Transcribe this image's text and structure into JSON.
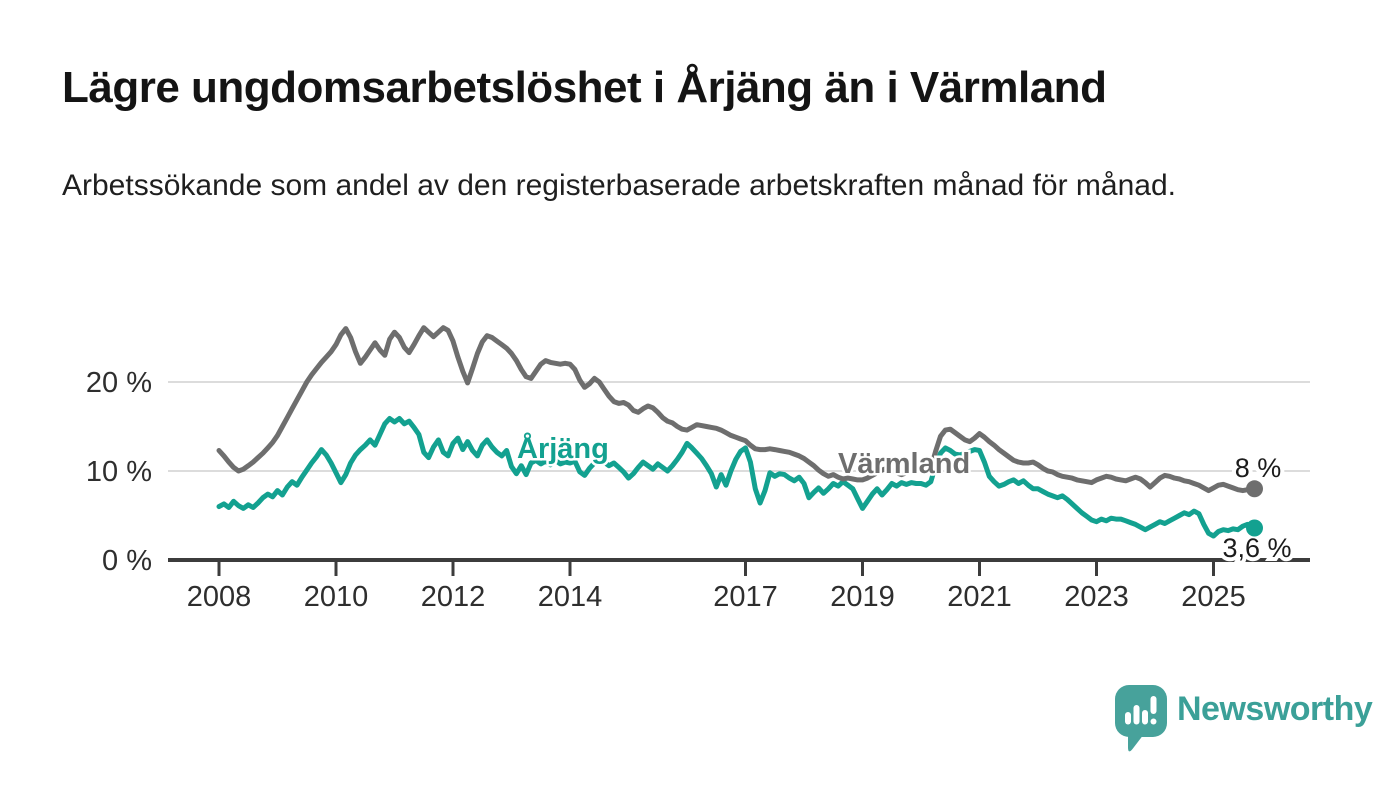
{
  "header": {
    "title": "Lägre ungdomsarbetslöshet i Årjäng än i Värmland",
    "subtitle": "Arbetssökande som andel av den registerbaserade arbetskraften månad för månad."
  },
  "colors": {
    "background": "#ffffff",
    "title_text": "#141414",
    "subtitle_text": "#1f1f1f",
    "axis_line": "#3c3c3c",
    "tick_label": "#2e2e2e",
    "gridline": "#dcdcdc",
    "varmland_line": "#6e6e6e",
    "arjang_line": "#13a190",
    "end_label_text": "#1c1c1c",
    "logo_teal": "#47a29b",
    "wordmark_teal": "#3ba098"
  },
  "chart_data": {
    "type": "line",
    "title": "Lägre ungdomsarbetslöshet i Årjäng än i Värmland",
    "subtitle": "Arbetssökande som andel av den registerbaserade arbetskraften månad för månad.",
    "unit": "%",
    "frequency": "monthly",
    "start": "2008-01",
    "end": "2025-09",
    "ylim": [
      0,
      27
    ],
    "grid": true,
    "legend_position": "inline-labels",
    "y_ticks": [
      {
        "value": 20,
        "label": "20 %",
        "grid": true
      },
      {
        "value": 10,
        "label": "10 %",
        "grid": true
      },
      {
        "value": 0,
        "label": "0 %",
        "grid": false
      }
    ],
    "x_ticks": [
      {
        "year": 2008,
        "label": "2008"
      },
      {
        "year": 2010,
        "label": "2010"
      },
      {
        "year": 2012,
        "label": "2012"
      },
      {
        "year": 2014,
        "label": "2014"
      },
      {
        "year": 2017,
        "label": "2017"
      },
      {
        "year": 2019,
        "label": "2019"
      },
      {
        "year": 2021,
        "label": "2021"
      },
      {
        "year": 2023,
        "label": "2023"
      },
      {
        "year": 2025,
        "label": "2025"
      }
    ],
    "series": [
      {
        "name": "Värmland",
        "color": "#6e6e6e",
        "end_label": "8 %",
        "last_value": 8.0,
        "values": [
          12.3,
          11.7,
          11.0,
          10.4,
          10.0,
          10.2,
          10.6,
          11.0,
          11.5,
          12.0,
          12.6,
          13.2,
          14.0,
          15.0,
          16.0,
          17.0,
          18.0,
          19.0,
          20.0,
          20.8,
          21.5,
          22.2,
          22.8,
          23.4,
          24.2,
          25.3,
          26.0,
          25.0,
          23.4,
          22.1,
          22.8,
          23.6,
          24.4,
          23.6,
          23.0,
          24.8,
          25.6,
          25.0,
          23.9,
          23.3,
          24.2,
          25.2,
          26.1,
          25.6,
          25.1,
          25.6,
          26.1,
          25.8,
          24.6,
          22.8,
          21.2,
          19.9,
          21.5,
          23.2,
          24.5,
          25.2,
          25.0,
          24.6,
          24.2,
          23.8,
          23.2,
          22.4,
          21.4,
          20.6,
          20.4,
          21.2,
          22.0,
          22.4,
          22.2,
          22.1,
          22.0,
          22.1,
          22.0,
          21.4,
          20.2,
          19.4,
          19.8,
          20.4,
          20.0,
          19.2,
          18.4,
          17.8,
          17.6,
          17.7,
          17.4,
          16.8,
          16.6,
          17.0,
          17.3,
          17.1,
          16.6,
          16.0,
          15.6,
          15.4,
          15.0,
          14.7,
          14.6,
          14.9,
          15.2,
          15.1,
          15.0,
          14.9,
          14.8,
          14.6,
          14.3,
          14.0,
          13.8,
          13.6,
          13.4,
          12.9,
          12.5,
          12.4,
          12.4,
          12.5,
          12.4,
          12.3,
          12.2,
          12.1,
          11.9,
          11.7,
          11.4,
          11.0,
          10.6,
          10.1,
          9.7,
          9.4,
          9.6,
          9.3,
          9.1,
          9.2,
          9.1,
          9.0,
          9.0,
          9.2,
          9.5,
          9.8,
          10.1,
          10.3,
          10.1,
          9.8,
          9.6,
          9.8,
          9.9,
          10.0,
          10.0,
          9.9,
          10.3,
          12.2,
          13.9,
          14.6,
          14.7,
          14.3,
          13.9,
          13.5,
          13.3,
          13.7,
          14.2,
          13.8,
          13.3,
          12.9,
          12.4,
          12.0,
          11.6,
          11.2,
          11.0,
          10.9,
          10.9,
          11.0,
          10.7,
          10.3,
          10.0,
          9.9,
          9.6,
          9.4,
          9.3,
          9.2,
          9.0,
          8.9,
          8.8,
          8.7,
          9.0,
          9.2,
          9.4,
          9.3,
          9.1,
          9.0,
          8.9,
          9.1,
          9.3,
          9.1,
          8.7,
          8.2,
          8.7,
          9.2,
          9.5,
          9.4,
          9.2,
          9.1,
          8.9,
          8.8,
          8.6,
          8.4,
          8.1,
          7.8,
          8.1,
          8.4,
          8.5,
          8.3,
          8.1,
          7.9,
          7.8,
          7.9,
          8.0
        ]
      },
      {
        "name": "Årjäng",
        "color": "#13a190",
        "end_label": "3,6 %",
        "last_value": 3.6,
        "values": [
          6.0,
          6.3,
          5.9,
          6.6,
          6.1,
          5.8,
          6.2,
          5.9,
          6.4,
          7.0,
          7.4,
          7.1,
          7.8,
          7.3,
          8.2,
          8.8,
          8.4,
          9.3,
          10.1,
          10.9,
          11.6,
          12.4,
          11.8,
          10.9,
          9.8,
          8.7,
          9.6,
          10.9,
          11.8,
          12.4,
          12.9,
          13.5,
          12.9,
          14.1,
          15.3,
          15.9,
          15.5,
          15.9,
          15.3,
          15.6,
          14.9,
          14.1,
          12.1,
          11.5,
          12.7,
          13.5,
          12.1,
          11.7,
          13.1,
          13.7,
          12.4,
          13.3,
          12.3,
          11.7,
          12.9,
          13.5,
          12.7,
          12.1,
          11.7,
          12.3,
          10.5,
          9.7,
          10.6,
          9.6,
          10.9,
          11.2,
          10.8,
          11.1,
          10.7,
          11.2,
          10.8,
          11.0,
          10.9,
          11.1,
          9.9,
          9.5,
          10.3,
          10.9,
          11.2,
          11.0,
          10.6,
          10.9,
          10.4,
          9.9,
          9.2,
          9.7,
          10.4,
          11.0,
          10.6,
          10.2,
          10.8,
          10.4,
          10.0,
          10.6,
          11.3,
          12.1,
          13.1,
          12.6,
          12.0,
          11.4,
          10.6,
          9.7,
          8.2,
          9.6,
          8.4,
          10.0,
          11.3,
          12.2,
          12.6,
          11.0,
          8.0,
          6.4,
          7.8,
          9.8,
          9.4,
          9.7,
          9.6,
          9.2,
          8.9,
          9.3,
          8.6,
          7.0,
          7.6,
          8.1,
          7.5,
          8.0,
          8.6,
          8.3,
          8.8,
          8.4,
          8.0,
          6.9,
          5.8,
          6.6,
          7.4,
          8.0,
          7.3,
          7.9,
          8.6,
          8.3,
          8.7,
          8.5,
          8.7,
          8.6,
          8.6,
          8.4,
          8.8,
          10.6,
          12.0,
          12.6,
          12.3,
          11.9,
          11.8,
          12.0,
          12.2,
          12.4,
          12.3,
          11.0,
          9.4,
          8.8,
          8.3,
          8.5,
          8.8,
          9.0,
          8.6,
          8.9,
          8.4,
          8.0,
          8.0,
          7.7,
          7.4,
          7.2,
          7.0,
          7.2,
          6.8,
          6.3,
          5.8,
          5.3,
          4.9,
          4.5,
          4.3,
          4.6,
          4.4,
          4.7,
          4.6,
          4.6,
          4.4,
          4.2,
          4.0,
          3.7,
          3.4,
          3.7,
          4.0,
          4.3,
          4.1,
          4.4,
          4.7,
          5.0,
          5.3,
          5.1,
          5.5,
          5.2,
          4.0,
          3.0,
          2.7,
          3.2,
          3.4,
          3.3,
          3.5,
          3.4,
          3.8,
          4.0,
          3.6
        ]
      }
    ]
  },
  "footer": {
    "brand": "Newsworthy"
  }
}
